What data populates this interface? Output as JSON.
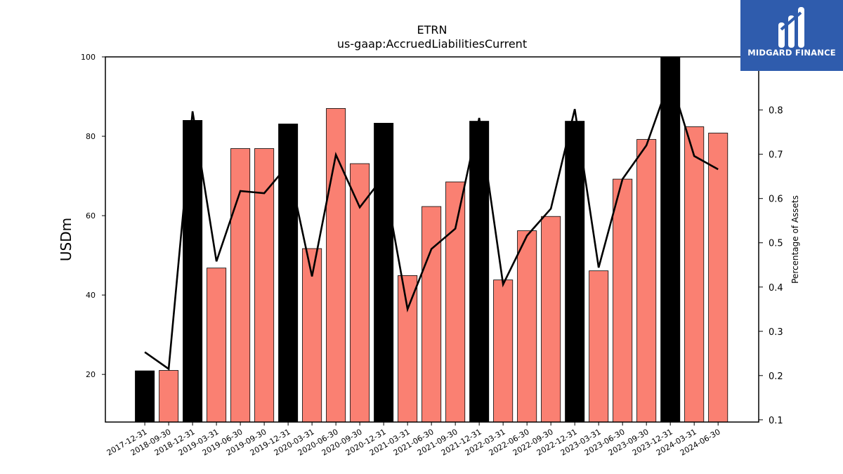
{
  "chart_data": {
    "type": "bar",
    "title": "ETRN",
    "subtitle": "us-gaap:AccruedLiabilitiesCurrent",
    "ylabel": "USDm",
    "y2label": "Percentage of Assets",
    "ylim": [
      8,
      100
    ],
    "y2lim": [
      0.095,
      0.92
    ],
    "yticks": [
      20,
      40,
      60,
      80,
      100
    ],
    "y2ticks": [
      0.1,
      0.2,
      0.3,
      0.4,
      0.5,
      0.6,
      0.7,
      0.8
    ],
    "categories": [
      "2017-12-31",
      "2018-09-30",
      "2018-12-31",
      "2019-03-31",
      "2019-06-30",
      "2019-09-30",
      "2019-12-31",
      "2020-03-31",
      "2020-06-30",
      "2020-09-30",
      "2020-12-31",
      "2021-03-31",
      "2021-06-30",
      "2021-09-30",
      "2021-12-31",
      "2022-03-31",
      "2022-06-30",
      "2022-09-30",
      "2022-12-31",
      "2023-03-31",
      "2023-06-30",
      "2023-09-30",
      "2023-12-31",
      "2024-03-31",
      "2024-06-30"
    ],
    "series": [
      {
        "kind": "bar",
        "values": [
          20.9,
          21.0,
          84.0,
          46.8,
          76.9,
          76.9,
          83.1,
          51.7,
          87.0,
          73.1,
          83.3,
          44.9,
          62.3,
          68.5,
          83.8,
          43.8,
          56.2,
          59.8,
          83.8,
          46.1,
          69.2,
          79.2,
          100.0,
          82.4,
          80.8
        ],
        "annual": [
          true,
          false,
          true,
          false,
          false,
          false,
          true,
          false,
          false,
          false,
          true,
          false,
          false,
          false,
          true,
          false,
          false,
          false,
          true,
          false,
          false,
          false,
          true,
          false,
          false
        ]
      },
      {
        "kind": "line",
        "axis": "right",
        "values": [
          0.253,
          0.215,
          0.797,
          0.458,
          0.617,
          0.612,
          0.676,
          0.424,
          0.699,
          0.58,
          0.65,
          0.35,
          0.486,
          0.532,
          0.782,
          0.406,
          0.516,
          0.577,
          0.802,
          0.444,
          0.644,
          0.72,
          0.872,
          0.696,
          0.666
        ]
      }
    ],
    "colors": {
      "annual_bar": "#000000",
      "quarter_bar": "#fa8072",
      "line": "#000000"
    }
  },
  "logo": {
    "text": "MIDGARD FINANCE",
    "icon": "midgard-logo-icon",
    "background": "#2f5cad"
  }
}
